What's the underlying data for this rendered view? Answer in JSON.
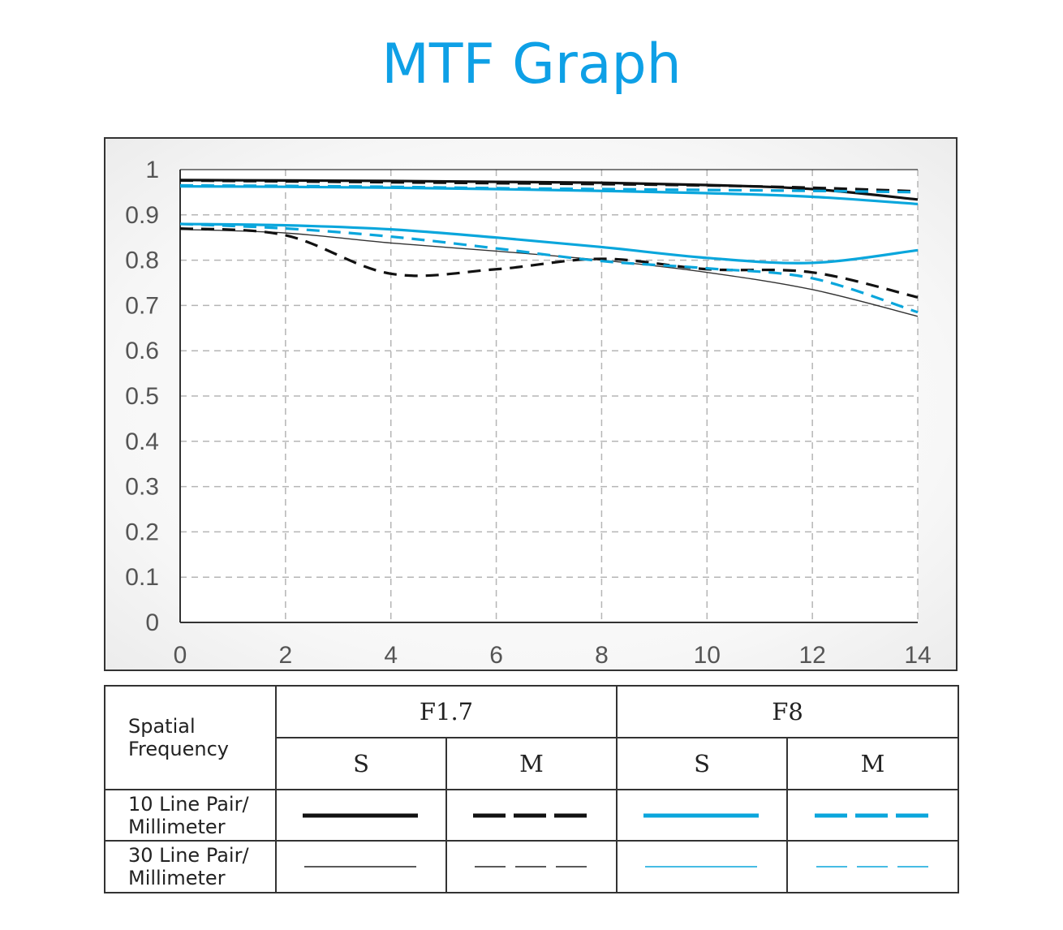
{
  "title": "MTF Graph",
  "colors": {
    "accent": "#0ea0e6",
    "f17": "#111111",
    "f8": "#0aa6dc",
    "grid": "#b5b5b5"
  },
  "legend": {
    "header_label": "Spatial Frequency",
    "header_label_line1": "Spatial",
    "header_label_line2": "Frequency",
    "apertures": [
      "F1.7",
      "F8"
    ],
    "orientations": [
      "S",
      "M",
      "S",
      "M"
    ],
    "rows": [
      {
        "line1": "10 Line Pair/",
        "line2": "Millimeter"
      },
      {
        "line1": "30 Line Pair/",
        "line2": "Millimeter"
      }
    ]
  },
  "chart_data": {
    "type": "line",
    "title": "MTF Graph",
    "xlabel": "",
    "ylabel": "",
    "xlim": [
      0,
      14
    ],
    "ylim": [
      0,
      1
    ],
    "xticks": [
      "0",
      "2",
      "4",
      "6",
      "8",
      "10",
      "12",
      "14"
    ],
    "yticks": [
      "0",
      "0.1",
      "0.2",
      "0.3",
      "0.4",
      "0.5",
      "0.6",
      "0.7",
      "0.8",
      "0.9",
      "1"
    ],
    "grid": true,
    "x": [
      0,
      2,
      4,
      6,
      8,
      10,
      12,
      14
    ],
    "series": [
      {
        "aperture": "F1.7",
        "frequency": "10 Line Pair/Millimeter",
        "orientation": "S",
        "color": "#111111",
        "style": "solid",
        "weight": "thick",
        "values": [
          0.977,
          0.976,
          0.975,
          0.973,
          0.971,
          0.966,
          0.957,
          0.934
        ]
      },
      {
        "aperture": "F1.7",
        "frequency": "10 Line Pair/Millimeter",
        "orientation": "M",
        "color": "#111111",
        "style": "dashed",
        "weight": "thick",
        "values": [
          0.976,
          0.974,
          0.972,
          0.97,
          0.968,
          0.965,
          0.96,
          0.952
        ]
      },
      {
        "aperture": "F8",
        "frequency": "10 Line Pair/Millimeter",
        "orientation": "S",
        "color": "#0aa6dc",
        "style": "solid",
        "weight": "thick",
        "values": [
          0.963,
          0.962,
          0.96,
          0.957,
          0.953,
          0.948,
          0.94,
          0.924
        ]
      },
      {
        "aperture": "F8",
        "frequency": "10 Line Pair/Millimeter",
        "orientation": "M",
        "color": "#0aa6dc",
        "style": "dashed",
        "weight": "thick",
        "values": [
          0.965,
          0.964,
          0.962,
          0.959,
          0.957,
          0.955,
          0.953,
          0.95
        ]
      },
      {
        "aperture": "F1.7",
        "frequency": "30 Line Pair/Millimeter",
        "orientation": "S",
        "color": "#333333",
        "style": "solid",
        "weight": "thin",
        "values": [
          0.868,
          0.86,
          0.838,
          0.82,
          0.8,
          0.773,
          0.735,
          0.676
        ]
      },
      {
        "aperture": "F1.7",
        "frequency": "30 Line Pair/Millimeter",
        "orientation": "M",
        "color": "#111111",
        "style": "dashed",
        "weight": "thick",
        "values": [
          0.87,
          0.855,
          0.77,
          0.78,
          0.803,
          0.78,
          0.773,
          0.718
        ]
      },
      {
        "aperture": "F8",
        "frequency": "30 Line Pair/Millimeter",
        "orientation": "S",
        "color": "#0aa6dc",
        "style": "solid",
        "weight": "thick",
        "values": [
          0.88,
          0.877,
          0.868,
          0.85,
          0.829,
          0.805,
          0.794,
          0.822
        ]
      },
      {
        "aperture": "F8",
        "frequency": "30 Line Pair/Millimeter",
        "orientation": "M",
        "color": "#0aa6dc",
        "style": "dashed",
        "weight": "thick",
        "values": [
          0.88,
          0.87,
          0.852,
          0.826,
          0.798,
          0.782,
          0.76,
          0.685
        ]
      }
    ]
  }
}
